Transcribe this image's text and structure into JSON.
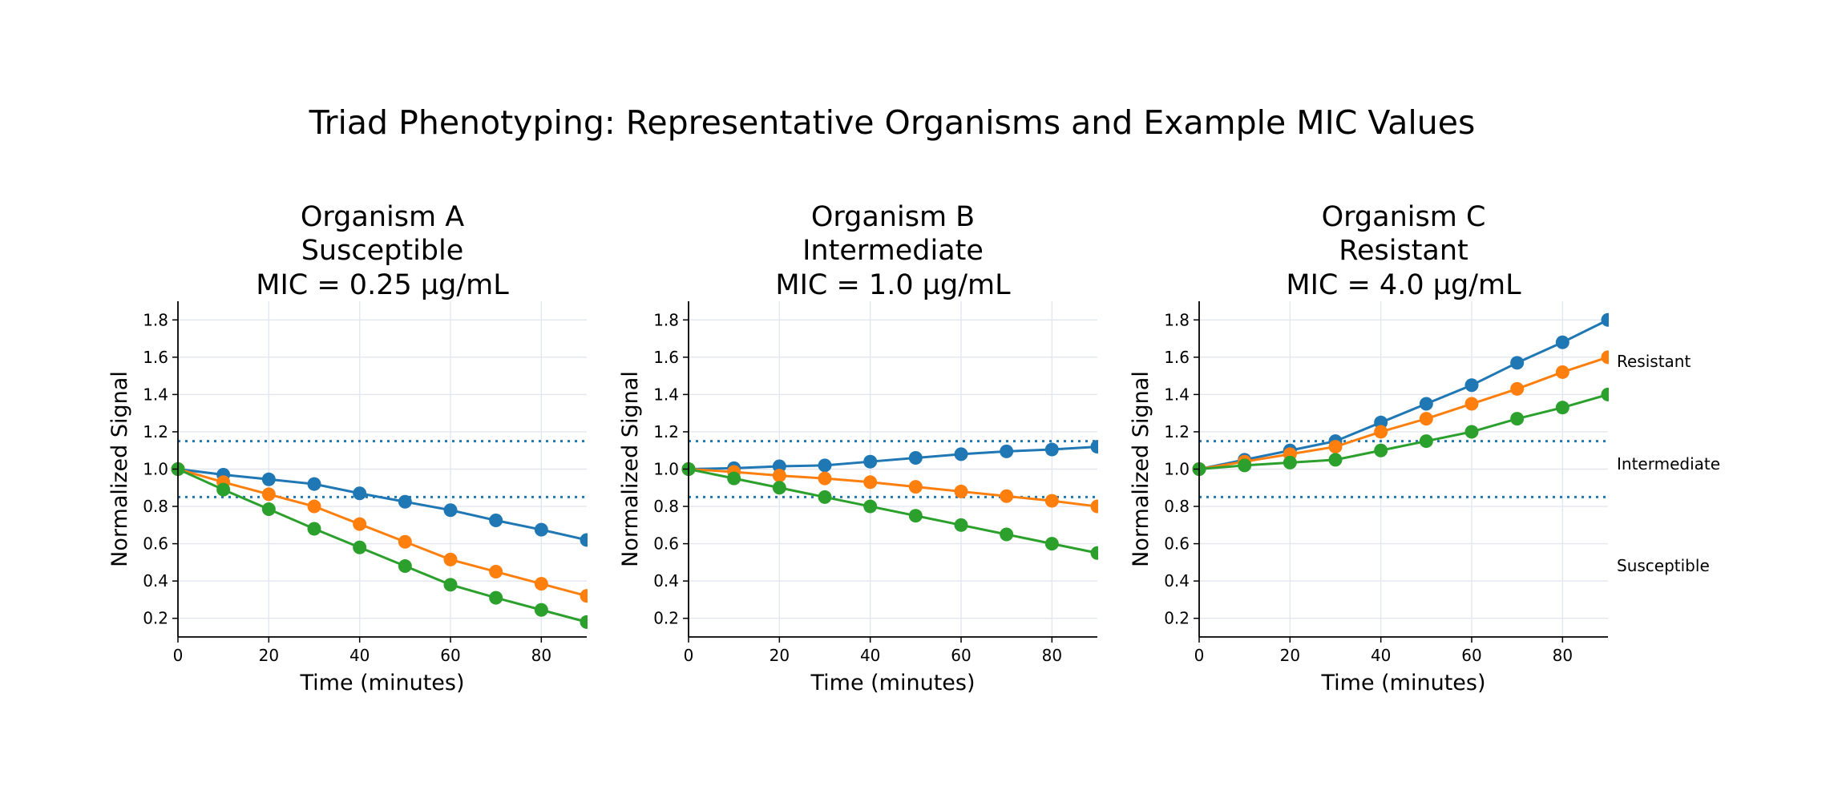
{
  "figure_title": "Triad Phenotyping: Representative Organisms and Example MIC Values",
  "colors": {
    "series1": "#1f77b4",
    "series2": "#ff7f0e",
    "series3": "#2ca02c",
    "threshold": "#1f77b4",
    "grid": "#e3e6ef"
  },
  "zone_labels": [
    "Resistant",
    "Intermediate",
    "Susceptible"
  ],
  "chart_data": [
    {
      "type": "line",
      "title": [
        "Organism A",
        "Susceptible",
        "MIC = 0.25 µg/mL"
      ],
      "xlabel": "Time (minutes)",
      "ylabel": "Normalized Signal",
      "xlim": [
        0,
        90
      ],
      "ylim": [
        0.1,
        1.9
      ],
      "xticks": [
        0,
        20,
        40,
        60,
        80
      ],
      "yticks": [
        0.2,
        0.4,
        0.6,
        0.8,
        1.0,
        1.2,
        1.4,
        1.6,
        1.8
      ],
      "grid": true,
      "threshold_lines": [
        1.15,
        0.85
      ],
      "x": [
        0,
        10,
        20,
        30,
        40,
        50,
        60,
        70,
        80,
        90
      ],
      "series": [
        {
          "values": [
            1.0,
            0.97,
            0.945,
            0.92,
            0.87,
            0.825,
            0.78,
            0.725,
            0.675,
            0.62
          ]
        },
        {
          "values": [
            1.0,
            0.93,
            0.865,
            0.8,
            0.705,
            0.61,
            0.515,
            0.45,
            0.385,
            0.32
          ]
        },
        {
          "values": [
            1.0,
            0.89,
            0.785,
            0.68,
            0.58,
            0.48,
            0.38,
            0.31,
            0.245,
            0.18
          ]
        }
      ]
    },
    {
      "type": "line",
      "title": [
        "Organism B",
        "Intermediate",
        "MIC = 1.0 µg/mL"
      ],
      "xlabel": "Time (minutes)",
      "ylabel": "Normalized Signal",
      "xlim": [
        0,
        90
      ],
      "ylim": [
        0.1,
        1.9
      ],
      "xticks": [
        0,
        20,
        40,
        60,
        80
      ],
      "yticks": [
        0.2,
        0.4,
        0.6,
        0.8,
        1.0,
        1.2,
        1.4,
        1.6,
        1.8
      ],
      "grid": true,
      "threshold_lines": [
        1.15,
        0.85
      ],
      "x": [
        0,
        10,
        20,
        30,
        40,
        50,
        60,
        70,
        80,
        90
      ],
      "series": [
        {
          "values": [
            1.0,
            1.005,
            1.015,
            1.02,
            1.04,
            1.06,
            1.08,
            1.095,
            1.105,
            1.12
          ]
        },
        {
          "values": [
            1.0,
            0.985,
            0.965,
            0.95,
            0.93,
            0.905,
            0.88,
            0.855,
            0.83,
            0.8
          ]
        },
        {
          "values": [
            1.0,
            0.95,
            0.9,
            0.85,
            0.8,
            0.75,
            0.7,
            0.65,
            0.6,
            0.55
          ]
        }
      ]
    },
    {
      "type": "line",
      "title": [
        "Organism C",
        "Resistant",
        "MIC = 4.0 µg/mL"
      ],
      "xlabel": "Time (minutes)",
      "ylabel": "Normalized Signal",
      "xlim": [
        0,
        90
      ],
      "ylim": [
        0.1,
        1.9
      ],
      "xticks": [
        0,
        20,
        40,
        60,
        80
      ],
      "yticks": [
        0.2,
        0.4,
        0.6,
        0.8,
        1.0,
        1.2,
        1.4,
        1.6,
        1.8
      ],
      "grid": true,
      "threshold_lines": [
        1.15,
        0.85
      ],
      "x": [
        0,
        10,
        20,
        30,
        40,
        50,
        60,
        70,
        80,
        90
      ],
      "series": [
        {
          "values": [
            1.0,
            1.05,
            1.1,
            1.15,
            1.25,
            1.35,
            1.45,
            1.57,
            1.68,
            1.8
          ]
        },
        {
          "values": [
            1.0,
            1.04,
            1.08,
            1.12,
            1.2,
            1.27,
            1.35,
            1.43,
            1.52,
            1.6
          ]
        },
        {
          "values": [
            1.0,
            1.02,
            1.035,
            1.05,
            1.1,
            1.15,
            1.2,
            1.27,
            1.33,
            1.4
          ]
        }
      ]
    }
  ]
}
